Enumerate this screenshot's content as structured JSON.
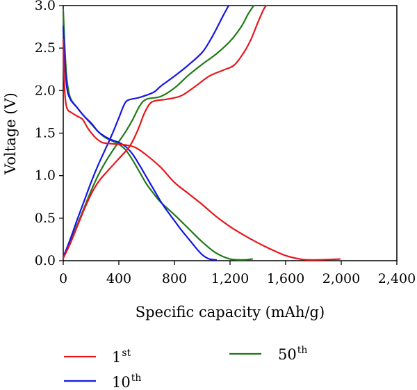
{
  "chart_data": {
    "type": "line",
    "xlabel": "Specific capacity (mAh/g)",
    "ylabel": "Voltage (V)",
    "xlim": [
      0,
      2400
    ],
    "ylim": [
      0,
      3.0
    ],
    "x_ticks": [
      0,
      400,
      800,
      1200,
      1600,
      2000,
      2400
    ],
    "x_tick_labels": [
      "0",
      "400",
      "800",
      "1,200",
      "1,600",
      "2,000",
      "2,400"
    ],
    "y_ticks": [
      0,
      0.5,
      1.0,
      1.5,
      2.0,
      2.5,
      3.0
    ],
    "y_tick_labels": [
      "0.0",
      "0.5",
      "1.0",
      "1.5",
      "2.0",
      "2.5",
      "3.0"
    ],
    "grid": false,
    "legend_position": "bottom",
    "series": [
      {
        "name": "1st",
        "name_base": "1",
        "name_sup": "st",
        "color": "#e8151b",
        "discharge": [
          [
            0,
            2.6
          ],
          [
            5,
            2.2
          ],
          [
            15,
            1.9
          ],
          [
            30,
            1.78
          ],
          [
            60,
            1.74
          ],
          [
            100,
            1.7
          ],
          [
            140,
            1.66
          ],
          [
            180,
            1.55
          ],
          [
            230,
            1.45
          ],
          [
            280,
            1.39
          ],
          [
            350,
            1.375
          ],
          [
            450,
            1.36
          ],
          [
            520,
            1.33
          ],
          [
            600,
            1.24
          ],
          [
            700,
            1.1
          ],
          [
            800,
            0.92
          ],
          [
            900,
            0.79
          ],
          [
            1000,
            0.66
          ],
          [
            1100,
            0.52
          ],
          [
            1200,
            0.4
          ],
          [
            1300,
            0.3
          ],
          [
            1400,
            0.21
          ],
          [
            1500,
            0.13
          ],
          [
            1600,
            0.06
          ],
          [
            1700,
            0.02
          ],
          [
            1750,
            0.01
          ],
          [
            1850,
            0.01
          ],
          [
            1990,
            0.02
          ]
        ],
        "charge": [
          [
            0,
            0.03
          ],
          [
            50,
            0.2
          ],
          [
            100,
            0.4
          ],
          [
            150,
            0.6
          ],
          [
            200,
            0.78
          ],
          [
            250,
            0.92
          ],
          [
            300,
            1.02
          ],
          [
            400,
            1.2
          ],
          [
            480,
            1.35
          ],
          [
            540,
            1.55
          ],
          [
            580,
            1.72
          ],
          [
            620,
            1.84
          ],
          [
            660,
            1.88
          ],
          [
            750,
            1.9
          ],
          [
            850,
            1.94
          ],
          [
            950,
            2.05
          ],
          [
            1050,
            2.17
          ],
          [
            1150,
            2.24
          ],
          [
            1230,
            2.3
          ],
          [
            1300,
            2.45
          ],
          [
            1350,
            2.6
          ],
          [
            1400,
            2.8
          ],
          [
            1440,
            2.95
          ],
          [
            1460,
            3.0
          ]
        ]
      },
      {
        "name": "10th",
        "name_base": "10",
        "name_sup": "th",
        "color": "#1515e8",
        "discharge": [
          [
            0,
            2.75
          ],
          [
            10,
            2.4
          ],
          [
            25,
            2.05
          ],
          [
            50,
            1.9
          ],
          [
            100,
            1.8
          ],
          [
            150,
            1.7
          ],
          [
            200,
            1.62
          ],
          [
            250,
            1.52
          ],
          [
            300,
            1.46
          ],
          [
            350,
            1.42
          ],
          [
            400,
            1.39
          ],
          [
            450,
            1.34
          ],
          [
            500,
            1.25
          ],
          [
            550,
            1.12
          ],
          [
            600,
            0.98
          ],
          [
            650,
            0.84
          ],
          [
            700,
            0.7
          ],
          [
            750,
            0.58
          ],
          [
            800,
            0.47
          ],
          [
            850,
            0.36
          ],
          [
            900,
            0.26
          ],
          [
            950,
            0.16
          ],
          [
            1000,
            0.07
          ],
          [
            1050,
            0.02
          ],
          [
            1100,
            0.01
          ]
        ],
        "charge": [
          [
            0,
            0.04
          ],
          [
            50,
            0.25
          ],
          [
            100,
            0.48
          ],
          [
            150,
            0.7
          ],
          [
            200,
            0.92
          ],
          [
            250,
            1.12
          ],
          [
            300,
            1.3
          ],
          [
            350,
            1.48
          ],
          [
            400,
            1.68
          ],
          [
            440,
            1.84
          ],
          [
            470,
            1.89
          ],
          [
            550,
            1.92
          ],
          [
            650,
            1.98
          ],
          [
            700,
            2.05
          ],
          [
            800,
            2.17
          ],
          [
            900,
            2.3
          ],
          [
            1000,
            2.45
          ],
          [
            1060,
            2.6
          ],
          [
            1100,
            2.72
          ],
          [
            1150,
            2.88
          ],
          [
            1190,
            3.0
          ]
        ]
      },
      {
        "name": "50th",
        "name_base": "50",
        "name_sup": "th",
        "color": "#1f7a17",
        "discharge": [
          [
            0,
            2.95
          ],
          [
            10,
            2.55
          ],
          [
            25,
            2.15
          ],
          [
            50,
            1.92
          ],
          [
            100,
            1.8
          ],
          [
            150,
            1.7
          ],
          [
            200,
            1.61
          ],
          [
            250,
            1.52
          ],
          [
            300,
            1.45
          ],
          [
            350,
            1.41
          ],
          [
            400,
            1.37
          ],
          [
            450,
            1.3
          ],
          [
            500,
            1.18
          ],
          [
            550,
            1.04
          ],
          [
            600,
            0.9
          ],
          [
            650,
            0.79
          ],
          [
            700,
            0.69
          ],
          [
            800,
            0.54
          ],
          [
            900,
            0.38
          ],
          [
            1000,
            0.22
          ],
          [
            1100,
            0.09
          ],
          [
            1200,
            0.02
          ],
          [
            1300,
            0.01
          ],
          [
            1360,
            0.02
          ]
        ],
        "charge": [
          [
            0,
            0.05
          ],
          [
            50,
            0.22
          ],
          [
            100,
            0.42
          ],
          [
            150,
            0.62
          ],
          [
            200,
            0.82
          ],
          [
            250,
            1.0
          ],
          [
            300,
            1.15
          ],
          [
            350,
            1.28
          ],
          [
            400,
            1.4
          ],
          [
            450,
            1.52
          ],
          [
            500,
            1.66
          ],
          [
            550,
            1.82
          ],
          [
            600,
            1.9
          ],
          [
            700,
            1.93
          ],
          [
            800,
            2.03
          ],
          [
            900,
            2.18
          ],
          [
            1000,
            2.31
          ],
          [
            1100,
            2.43
          ],
          [
            1200,
            2.58
          ],
          [
            1280,
            2.75
          ],
          [
            1330,
            2.9
          ],
          [
            1370,
            3.0
          ]
        ]
      }
    ]
  }
}
